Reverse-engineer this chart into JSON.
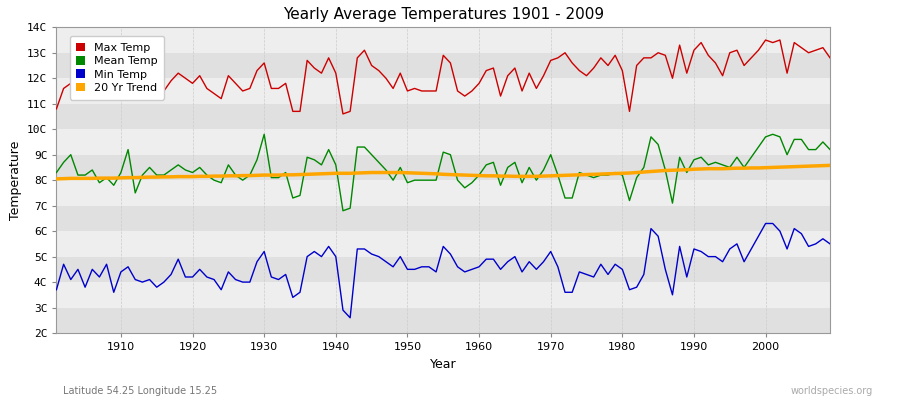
{
  "title": "Yearly Average Temperatures 1901 - 2009",
  "xlabel": "Year",
  "ylabel": "Temperature",
  "lat_lon_label": "Latitude 54.25 Longitude 15.25",
  "watermark": "worldspecies.org",
  "year_start": 1901,
  "year_end": 2009,
  "legend_labels": [
    "Max Temp",
    "Mean Temp",
    "Min Temp",
    "20 Yr Trend"
  ],
  "colors": {
    "max": "#cc0000",
    "mean": "#008800",
    "min": "#0000cc",
    "trend": "#ffa500"
  },
  "yticks": [
    "2C",
    "3C",
    "4C",
    "5C",
    "6C",
    "7C",
    "8C",
    "9C",
    "10C",
    "11C",
    "12C",
    "13C",
    "14C"
  ],
  "ytick_vals": [
    2,
    3,
    4,
    5,
    6,
    7,
    8,
    9,
    10,
    11,
    12,
    13,
    14
  ],
  "band_colors": [
    "#e0e0e0",
    "#eeeeee"
  ],
  "fig_bg": "#ffffff",
  "plot_bg": "#e8e8e8",
  "grid_color": "#ffffff",
  "max_temp": [
    10.8,
    11.6,
    11.8,
    11.9,
    11.7,
    11.5,
    11.6,
    11.5,
    11.3,
    11.5,
    12.0,
    11.2,
    11.8,
    12.1,
    11.8,
    11.5,
    11.9,
    12.2,
    12.0,
    11.8,
    12.1,
    11.6,
    11.4,
    11.2,
    12.1,
    11.8,
    11.5,
    11.6,
    12.3,
    12.6,
    11.6,
    11.6,
    11.8,
    10.7,
    10.7,
    12.7,
    12.4,
    12.2,
    12.8,
    12.2,
    10.6,
    10.7,
    12.8,
    13.1,
    12.5,
    12.3,
    12.0,
    11.6,
    12.2,
    11.5,
    11.6,
    11.5,
    11.5,
    11.5,
    12.9,
    12.6,
    11.5,
    11.3,
    11.5,
    11.8,
    12.3,
    12.4,
    11.3,
    12.1,
    12.4,
    11.5,
    12.2,
    11.6,
    12.1,
    12.7,
    12.8,
    13.0,
    12.6,
    12.3,
    12.1,
    12.4,
    12.8,
    12.5,
    12.9,
    12.3,
    10.7,
    12.5,
    12.8,
    12.8,
    13.0,
    12.9,
    12.0,
    13.3,
    12.2,
    13.1,
    13.4,
    12.9,
    12.6,
    12.1,
    13.0,
    13.1,
    12.5,
    12.8,
    13.1,
    13.5,
    13.4,
    13.5,
    12.2,
    13.4,
    13.2,
    13.0,
    13.1,
    13.2,
    12.8
  ],
  "mean_temp": [
    8.3,
    8.7,
    9.0,
    8.2,
    8.2,
    8.4,
    7.9,
    8.1,
    7.8,
    8.3,
    9.2,
    7.5,
    8.2,
    8.5,
    8.2,
    8.2,
    8.4,
    8.6,
    8.4,
    8.3,
    8.5,
    8.2,
    8.0,
    7.9,
    8.6,
    8.2,
    8.0,
    8.2,
    8.8,
    9.8,
    8.1,
    8.1,
    8.3,
    7.3,
    7.4,
    8.9,
    8.8,
    8.6,
    9.2,
    8.6,
    6.8,
    6.9,
    9.3,
    9.3,
    9.0,
    8.7,
    8.4,
    8.0,
    8.5,
    7.9,
    8.0,
    8.0,
    8.0,
    8.0,
    9.1,
    9.0,
    8.0,
    7.7,
    7.9,
    8.2,
    8.6,
    8.7,
    7.8,
    8.5,
    8.7,
    7.9,
    8.5,
    8.0,
    8.4,
    9.0,
    8.2,
    7.3,
    7.3,
    8.3,
    8.2,
    8.1,
    8.2,
    8.2,
    8.3,
    8.2,
    7.2,
    8.1,
    8.5,
    9.7,
    9.4,
    8.4,
    7.1,
    8.9,
    8.3,
    8.8,
    8.9,
    8.6,
    8.7,
    8.6,
    8.5,
    8.9,
    8.5,
    8.9,
    9.3,
    9.7,
    9.8,
    9.7,
    9.0,
    9.6,
    9.6,
    9.2,
    9.2,
    9.5,
    9.2
  ],
  "min_temp": [
    3.7,
    4.7,
    4.1,
    4.5,
    3.8,
    4.5,
    4.2,
    4.7,
    3.6,
    4.4,
    4.6,
    4.1,
    4.0,
    4.1,
    3.8,
    4.0,
    4.3,
    4.9,
    4.2,
    4.2,
    4.5,
    4.2,
    4.1,
    3.7,
    4.4,
    4.1,
    4.0,
    4.0,
    4.8,
    5.2,
    4.2,
    4.1,
    4.3,
    3.4,
    3.6,
    5.0,
    5.2,
    5.0,
    5.4,
    5.0,
    2.9,
    2.6,
    5.3,
    5.3,
    5.1,
    5.0,
    4.8,
    4.6,
    5.0,
    4.5,
    4.5,
    4.6,
    4.6,
    4.4,
    5.4,
    5.1,
    4.6,
    4.4,
    4.5,
    4.6,
    4.9,
    4.9,
    4.5,
    4.8,
    5.0,
    4.4,
    4.8,
    4.5,
    4.8,
    5.2,
    4.6,
    3.6,
    3.6,
    4.4,
    4.3,
    4.2,
    4.7,
    4.3,
    4.7,
    4.5,
    3.7,
    3.8,
    4.3,
    6.1,
    5.8,
    4.5,
    3.5,
    5.4,
    4.2,
    5.3,
    5.2,
    5.0,
    5.0,
    4.8,
    5.3,
    5.5,
    4.8,
    5.3,
    5.8,
    6.3,
    6.3,
    6.0,
    5.3,
    6.1,
    5.9,
    5.4,
    5.5,
    5.7,
    5.5
  ],
  "trend": [
    8.05,
    8.06,
    8.07,
    8.07,
    8.07,
    8.07,
    8.08,
    8.08,
    8.08,
    8.09,
    8.1,
    8.1,
    8.11,
    8.12,
    8.12,
    8.13,
    8.13,
    8.14,
    8.14,
    8.14,
    8.15,
    8.15,
    8.16,
    8.16,
    8.17,
    8.17,
    8.18,
    8.18,
    8.19,
    8.2,
    8.2,
    8.2,
    8.21,
    8.21,
    8.22,
    8.23,
    8.24,
    8.25,
    8.26,
    8.27,
    8.27,
    8.27,
    8.28,
    8.29,
    8.3,
    8.3,
    8.3,
    8.3,
    8.3,
    8.29,
    8.28,
    8.27,
    8.26,
    8.25,
    8.23,
    8.22,
    8.21,
    8.2,
    8.19,
    8.18,
    8.17,
    8.17,
    8.16,
    8.16,
    8.15,
    8.15,
    8.15,
    8.15,
    8.16,
    8.17,
    8.18,
    8.19,
    8.2,
    8.21,
    8.22,
    8.23,
    8.24,
    8.25,
    8.26,
    8.27,
    8.28,
    8.3,
    8.32,
    8.34,
    8.36,
    8.38,
    8.39,
    8.4,
    8.41,
    8.43,
    8.44,
    8.45,
    8.45,
    8.45,
    8.46,
    8.47,
    8.47,
    8.48,
    8.48,
    8.49,
    8.5,
    8.51,
    8.52,
    8.53,
    8.54,
    8.55,
    8.56,
    8.57,
    8.58
  ]
}
